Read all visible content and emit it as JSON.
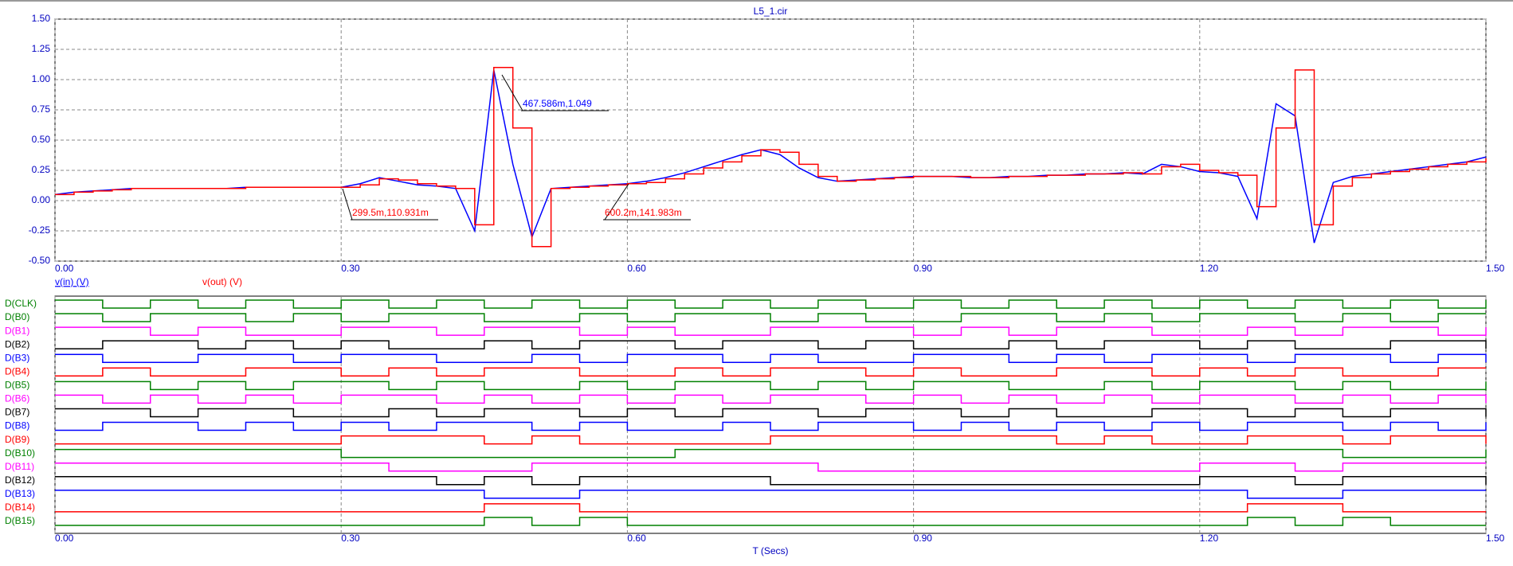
{
  "chart_data": [
    {
      "type": "line",
      "title": "L5_1.cir",
      "x": [
        0,
        0.02,
        0.04,
        0.06,
        0.08,
        0.1,
        0.12,
        0.14,
        0.16,
        0.18,
        0.2,
        0.22,
        0.24,
        0.26,
        0.28,
        0.3,
        0.32,
        0.34,
        0.36,
        0.38,
        0.4,
        0.42,
        0.44,
        0.46,
        0.48,
        0.5,
        0.52,
        0.54,
        0.56,
        0.58,
        0.6,
        0.62,
        0.64,
        0.66,
        0.68,
        0.7,
        0.72,
        0.74,
        0.76,
        0.78,
        0.8,
        0.82,
        0.84,
        0.86,
        0.88,
        0.9,
        0.92,
        0.94,
        0.96,
        0.98,
        1.0,
        1.02,
        1.04,
        1.06,
        1.08,
        1.1,
        1.12,
        1.14,
        1.16,
        1.18,
        1.2,
        1.22,
        1.24,
        1.26,
        1.28,
        1.3,
        1.32,
        1.34,
        1.36,
        1.38,
        1.4,
        1.42,
        1.44,
        1.46,
        1.48,
        1.5
      ],
      "series": [
        {
          "name": "v(in) (V)",
          "color": "#0000ff",
          "step": false,
          "values": [
            0.05,
            0.07,
            0.08,
            0.09,
            0.1,
            0.1,
            0.1,
            0.1,
            0.1,
            0.1,
            0.11,
            0.11,
            0.11,
            0.11,
            0.11,
            0.11,
            0.14,
            0.19,
            0.16,
            0.13,
            0.12,
            0.1,
            -0.25,
            1.08,
            0.3,
            -0.3,
            0.1,
            0.11,
            0.12,
            0.13,
            0.14,
            0.16,
            0.19,
            0.23,
            0.28,
            0.33,
            0.38,
            0.42,
            0.38,
            0.27,
            0.19,
            0.16,
            0.17,
            0.18,
            0.19,
            0.2,
            0.2,
            0.2,
            0.19,
            0.19,
            0.2,
            0.2,
            0.21,
            0.21,
            0.22,
            0.22,
            0.23,
            0.22,
            0.3,
            0.28,
            0.24,
            0.23,
            0.2,
            -0.15,
            0.8,
            0.7,
            -0.35,
            0.15,
            0.2,
            0.22,
            0.24,
            0.26,
            0.28,
            0.3,
            0.32,
            0.36
          ]
        },
        {
          "name": "v(out) (V)",
          "color": "#ff0000",
          "step": true,
          "values": [
            0.05,
            0.07,
            0.08,
            0.09,
            0.1,
            0.1,
            0.1,
            0.1,
            0.1,
            0.1,
            0.11,
            0.11,
            0.11,
            0.11,
            0.11,
            0.11,
            0.13,
            0.18,
            0.17,
            0.14,
            0.12,
            0.1,
            -0.2,
            1.1,
            0.6,
            -0.38,
            0.1,
            0.11,
            0.12,
            0.13,
            0.14,
            0.15,
            0.18,
            0.22,
            0.27,
            0.32,
            0.37,
            0.42,
            0.4,
            0.3,
            0.2,
            0.16,
            0.17,
            0.18,
            0.19,
            0.2,
            0.2,
            0.2,
            0.19,
            0.19,
            0.2,
            0.2,
            0.21,
            0.21,
            0.22,
            0.22,
            0.23,
            0.22,
            0.28,
            0.3,
            0.25,
            0.23,
            0.21,
            -0.05,
            0.6,
            1.08,
            -0.2,
            0.12,
            0.19,
            0.22,
            0.24,
            0.26,
            0.28,
            0.3,
            0.32,
            0.35
          ]
        }
      ],
      "xlim": [
        0,
        1.5
      ],
      "ylim": [
        -0.5,
        1.5
      ],
      "xticks": [
        {
          "value": 0,
          "label": "0.00"
        },
        {
          "value": 0.3,
          "label": "0.30"
        },
        {
          "value": 0.6,
          "label": "0.60"
        },
        {
          "value": 0.9,
          "label": "0.90"
        },
        {
          "value": 1.2,
          "label": "1.20"
        },
        {
          "value": 1.5,
          "label": "1.50"
        }
      ],
      "yticks": [
        {
          "value": -0.5,
          "label": "-0.50"
        },
        {
          "value": -0.25,
          "label": "-0.25"
        },
        {
          "value": 0,
          "label": "0.00"
        },
        {
          "value": 0.25,
          "label": "0.25"
        },
        {
          "value": 0.5,
          "label": "0.50"
        },
        {
          "value": 0.75,
          "label": "0.75"
        },
        {
          "value": 1,
          "label": "1.00"
        },
        {
          "value": 1.25,
          "label": "1.25"
        },
        {
          "value": 1.5,
          "label": "1.50"
        }
      ],
      "grid": true,
      "annotations": [
        {
          "text": "467.586m,1.049",
          "color": "#0000ff"
        },
        {
          "text": "299.5m,110.931m",
          "color": "#ff0000"
        },
        {
          "text": "600.2m,141.983m",
          "color": "#ff0000"
        }
      ]
    },
    {
      "type": "digital",
      "xlabel": "T (Secs)",
      "x": [
        0,
        0.05,
        0.1,
        0.15,
        0.2,
        0.25,
        0.3,
        0.35,
        0.4,
        0.45,
        0.5,
        0.55,
        0.6,
        0.65,
        0.7,
        0.75,
        0.8,
        0.85,
        0.9,
        0.95,
        1.0,
        1.05,
        1.1,
        1.15,
        1.2,
        1.25,
        1.3,
        1.35,
        1.4,
        1.45,
        1.5
      ],
      "series": [
        {
          "name": "D(CLK)",
          "color": "#008000",
          "values": [
            1,
            0,
            1,
            0,
            1,
            0,
            1,
            0,
            1,
            0,
            1,
            0,
            1,
            0,
            1,
            0,
            1,
            0,
            1,
            0,
            1,
            0,
            1,
            0,
            1,
            0,
            1,
            0,
            1,
            0,
            1
          ]
        },
        {
          "name": "D(B0)",
          "color": "#008000",
          "values": [
            1,
            0,
            1,
            1,
            0,
            1,
            0,
            1,
            1,
            0,
            0,
            1,
            0,
            1,
            1,
            0,
            1,
            0,
            0,
            1,
            1,
            0,
            1,
            0,
            1,
            1,
            0,
            1,
            0,
            1,
            1
          ]
        },
        {
          "name": "D(B1)",
          "color": "#ff00ff",
          "values": [
            1,
            1,
            0,
            1,
            0,
            0,
            1,
            1,
            0,
            1,
            1,
            0,
            1,
            0,
            0,
            1,
            1,
            1,
            0,
            1,
            0,
            1,
            1,
            0,
            0,
            1,
            0,
            1,
            1,
            0,
            1
          ]
        },
        {
          "name": "D(B2)",
          "color": "#000000",
          "values": [
            0,
            1,
            1,
            0,
            1,
            0,
            1,
            0,
            0,
            1,
            0,
            1,
            1,
            0,
            1,
            1,
            0,
            1,
            0,
            0,
            1,
            0,
            1,
            1,
            0,
            1,
            0,
            0,
            1,
            1,
            0
          ]
        },
        {
          "name": "D(B3)",
          "color": "#0000ff",
          "values": [
            1,
            0,
            0,
            1,
            1,
            0,
            1,
            1,
            0,
            0,
            1,
            0,
            1,
            1,
            0,
            1,
            0,
            0,
            1,
            1,
            0,
            1,
            0,
            1,
            1,
            0,
            1,
            1,
            0,
            1,
            0
          ]
        },
        {
          "name": "D(B4)",
          "color": "#ff0000",
          "values": [
            0,
            1,
            0,
            0,
            1,
            1,
            0,
            1,
            0,
            1,
            1,
            0,
            0,
            1,
            0,
            1,
            1,
            0,
            1,
            0,
            0,
            1,
            1,
            0,
            1,
            0,
            1,
            0,
            0,
            1,
            1
          ]
        },
        {
          "name": "D(B5)",
          "color": "#008000",
          "values": [
            1,
            1,
            0,
            1,
            0,
            1,
            1,
            0,
            1,
            0,
            0,
            1,
            0,
            1,
            1,
            0,
            1,
            0,
            1,
            1,
            0,
            0,
            1,
            0,
            1,
            1,
            0,
            1,
            0,
            0,
            1
          ]
        },
        {
          "name": "D(B6)",
          "color": "#ff00ff",
          "values": [
            1,
            0,
            1,
            0,
            1,
            0,
            1,
            1,
            0,
            1,
            0,
            1,
            0,
            1,
            0,
            1,
            1,
            0,
            1,
            0,
            1,
            0,
            1,
            0,
            1,
            1,
            0,
            1,
            0,
            1,
            0
          ]
        },
        {
          "name": "D(B7)",
          "color": "#000000",
          "values": [
            1,
            1,
            0,
            1,
            1,
            0,
            0,
            1,
            0,
            1,
            1,
            0,
            1,
            0,
            1,
            1,
            0,
            1,
            1,
            0,
            1,
            0,
            0,
            1,
            1,
            0,
            1,
            0,
            1,
            1,
            0
          ]
        },
        {
          "name": "D(B8)",
          "color": "#0000ff",
          "values": [
            0,
            1,
            1,
            0,
            1,
            0,
            1,
            0,
            1,
            1,
            0,
            1,
            0,
            0,
            1,
            0,
            1,
            1,
            0,
            1,
            0,
            1,
            0,
            1,
            0,
            1,
            1,
            0,
            1,
            0,
            1
          ]
        },
        {
          "name": "D(B9)",
          "color": "#ff0000",
          "values": [
            0,
            0,
            0,
            0,
            0,
            0,
            1,
            1,
            1,
            0,
            1,
            0,
            0,
            0,
            0,
            1,
            1,
            1,
            1,
            1,
            1,
            0,
            1,
            0,
            0,
            1,
            1,
            0,
            1,
            1,
            0
          ]
        },
        {
          "name": "D(B10)",
          "color": "#008000",
          "values": [
            1,
            1,
            1,
            1,
            1,
            1,
            0,
            0,
            0,
            0,
            0,
            0,
            0,
            1,
            1,
            1,
            1,
            1,
            1,
            1,
            1,
            1,
            1,
            1,
            1,
            1,
            1,
            0,
            0,
            0,
            1
          ]
        },
        {
          "name": "D(B11)",
          "color": "#ff00ff",
          "values": [
            1,
            1,
            1,
            1,
            1,
            1,
            1,
            0,
            0,
            0,
            1,
            1,
            1,
            1,
            1,
            1,
            0,
            0,
            0,
            0,
            0,
            0,
            0,
            0,
            1,
            1,
            0,
            1,
            1,
            1,
            1
          ]
        },
        {
          "name": "D(B12)",
          "color": "#000000",
          "values": [
            1,
            1,
            1,
            1,
            1,
            1,
            1,
            1,
            0,
            1,
            0,
            1,
            1,
            1,
            1,
            0,
            0,
            0,
            0,
            0,
            0,
            0,
            0,
            0,
            1,
            1,
            0,
            1,
            1,
            1,
            0
          ]
        },
        {
          "name": "D(B13)",
          "color": "#0000ff",
          "values": [
            1,
            1,
            1,
            1,
            1,
            1,
            1,
            1,
            1,
            0,
            0,
            1,
            1,
            1,
            1,
            1,
            1,
            1,
            1,
            1,
            1,
            1,
            1,
            1,
            1,
            0,
            0,
            1,
            1,
            1,
            1
          ]
        },
        {
          "name": "D(B14)",
          "color": "#ff0000",
          "values": [
            0,
            0,
            0,
            0,
            0,
            0,
            0,
            0,
            0,
            1,
            1,
            0,
            0,
            0,
            0,
            0,
            0,
            0,
            0,
            0,
            0,
            0,
            0,
            0,
            0,
            1,
            1,
            0,
            0,
            0,
            0
          ]
        },
        {
          "name": "D(B15)",
          "color": "#008000",
          "values": [
            0,
            0,
            0,
            0,
            0,
            0,
            0,
            0,
            0,
            1,
            0,
            1,
            0,
            0,
            0,
            0,
            0,
            0,
            0,
            0,
            0,
            0,
            0,
            0,
            0,
            1,
            0,
            1,
            0,
            0,
            0
          ]
        }
      ],
      "xlim": [
        0,
        1.5
      ],
      "ylim": [
        0,
        1
      ],
      "xticks": [
        {
          "value": 0,
          "label": "0.00"
        },
        {
          "value": 0.3,
          "label": "0.30"
        },
        {
          "value": 0.6,
          "label": "0.60"
        },
        {
          "value": 0.9,
          "label": "0.90"
        },
        {
          "value": 1.2,
          "label": "1.20"
        },
        {
          "value": 1.5,
          "label": "1.50"
        }
      ],
      "grid": true
    }
  ]
}
